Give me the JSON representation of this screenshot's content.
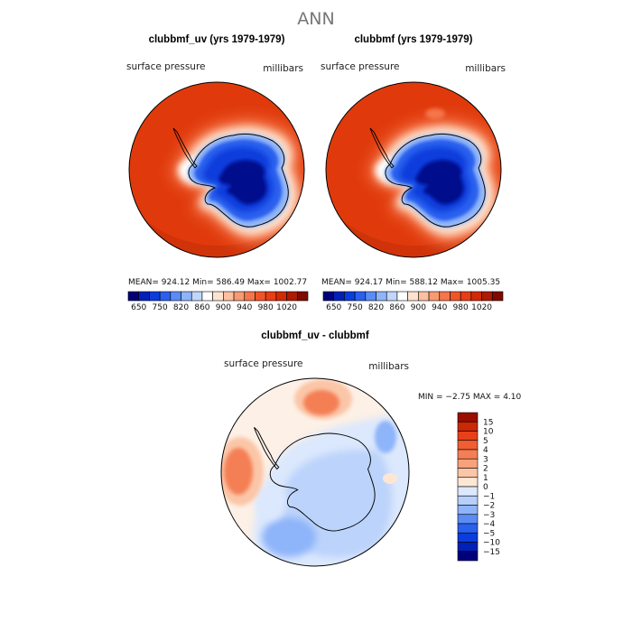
{
  "figure_title": "ANN",
  "panels": [
    {
      "title": "clubbmf_uv (yrs 1979-1979)",
      "variable": "surface pressure",
      "units": "millibars",
      "stats_text": "MEAN= 924.12   Min= 586.49   Max= 1002.77"
    },
    {
      "title": "clubbmf (yrs 1979-1979)",
      "variable": "surface pressure",
      "units": "millibars",
      "stats_text": "MEAN= 924.17   Min= 588.12   Max= 1005.35"
    },
    {
      "title": "clubbmf_uv - clubbmf",
      "variable": "surface pressure",
      "units": "millibars",
      "stats_text": "MIN =   −2.75  MAX =    4.10"
    }
  ],
  "colorbar_abs": {
    "colors": [
      "#00007a",
      "#0020b8",
      "#0a3ddc",
      "#2a60ee",
      "#5a8cf5",
      "#8eb4f9",
      "#c1d6fc",
      "#ffffff",
      "#fde3cf",
      "#fbc0a0",
      "#f89a72",
      "#f5764a",
      "#f0552a",
      "#e83d15",
      "#d22a06",
      "#ae1a02",
      "#7f0a00"
    ],
    "labels": [
      "650",
      "750",
      "820",
      "860",
      "900",
      "940",
      "980",
      "1020"
    ]
  },
  "colorbar_diff": {
    "colors": [
      "#00007a",
      "#0020b8",
      "#0a3ddc",
      "#2a60ee",
      "#5a8cf5",
      "#8eb4f9",
      "#b7cffb",
      "#dbe8fd",
      "#fde6d4",
      "#fbc6a8",
      "#f8a27c",
      "#f47f55",
      "#f05e33",
      "#e64119",
      "#cc2706",
      "#9a0d00"
    ],
    "labels": [
      "15",
      "10",
      "5",
      "4",
      "3",
      "2",
      "1",
      "0",
      "−1",
      "−2",
      "−3",
      "−4",
      "−5",
      "−10",
      "−15"
    ]
  },
  "map_colors": {
    "ocean_high": "#e03a0c",
    "ice_low": "#000a8c",
    "diff_neutral": "#fdf0e6",
    "diff_negative": "#bcd3fb",
    "diff_positive": "#f8915f"
  }
}
